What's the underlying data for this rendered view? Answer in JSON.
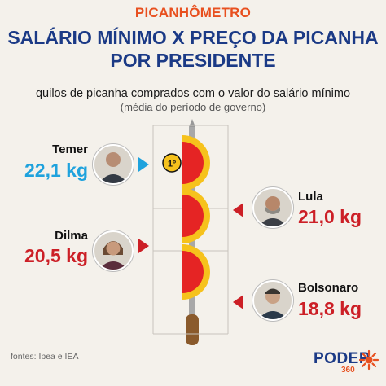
{
  "header": {
    "kicker": "PICANHÔMETRO",
    "title_line1": "SALÁRIO MÍNIMO X PREÇO DA PICANHA",
    "title_line2": "POR PRESIDENTE"
  },
  "chart_data": {
    "type": "bar",
    "subtitle": "quilos de picanha comprados com o valor do salário mínimo",
    "note": "(média do período de governo)",
    "categories": [
      "Temer",
      "Lula",
      "Dilma",
      "Bolsonaro"
    ],
    "values": [
      22.1,
      21.0,
      20.5,
      18.8
    ],
    "value_labels": [
      "22,1 kg",
      "21,0 kg",
      "20,5 kg",
      "18,8 kg"
    ],
    "rank_badge": "1º",
    "colors": {
      "first": "#1ea2dd",
      "others": "#cc1f26",
      "meat": "#e52424",
      "fat": "#f6c21c"
    }
  },
  "footer": {
    "sources": "fontes: Ipea e IEA",
    "logo": "PODER",
    "logo_sub": "360"
  },
  "icons": {
    "sun": "sun-logo-icon"
  }
}
